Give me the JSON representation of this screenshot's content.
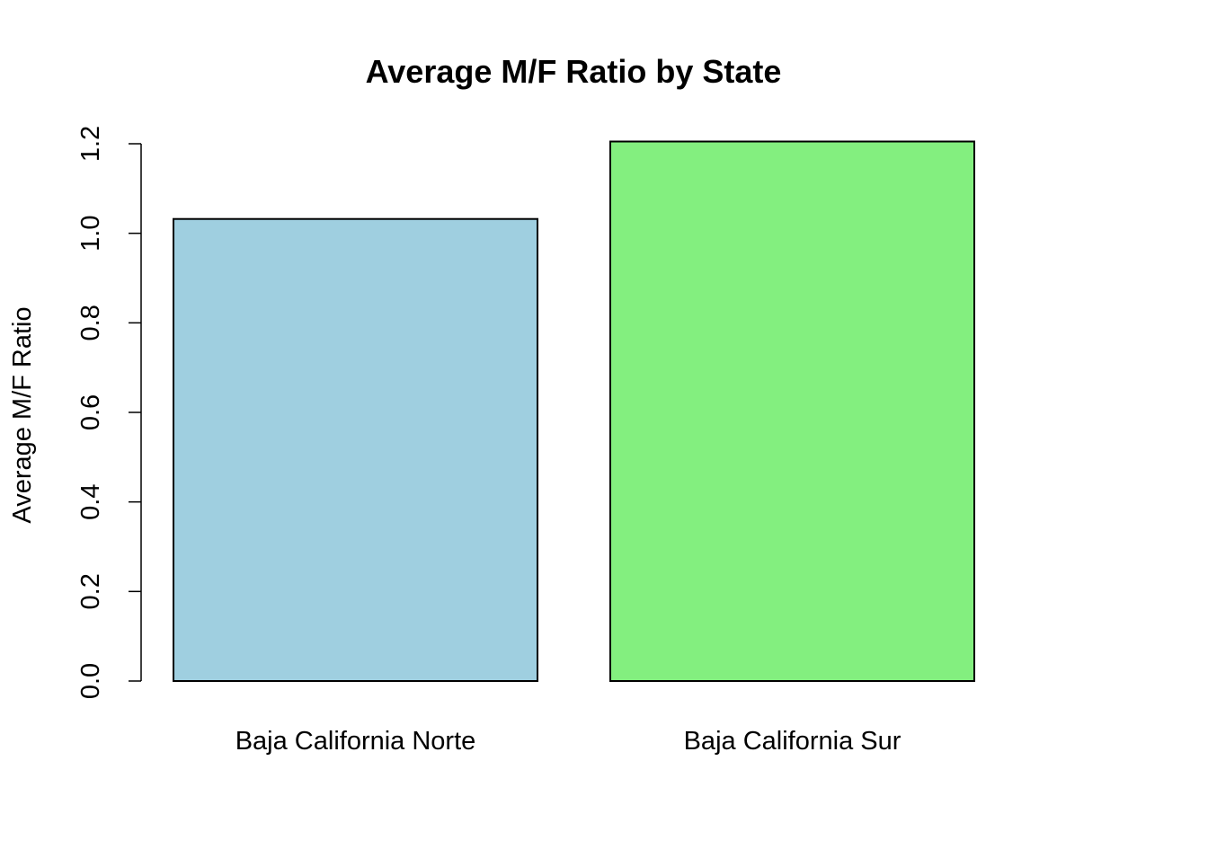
{
  "chart_data": {
    "type": "bar",
    "title": "Average M/F Ratio by State",
    "xlabel": "",
    "ylabel": "Average M/F Ratio",
    "categories": [
      "Baja California Norte",
      "Baja California Sur"
    ],
    "values": [
      1.032,
      1.205
    ],
    "colors": [
      "#9fcfe0",
      "#83ef7f"
    ],
    "ylim": [
      0,
      1.2
    ],
    "yticks": [
      0.0,
      0.2,
      0.4,
      0.6,
      0.8,
      1.0,
      1.2
    ],
    "ytick_labels": [
      "0.0",
      "0.2",
      "0.4",
      "0.6",
      "0.8",
      "1.0",
      "1.2"
    ],
    "grid": false,
    "legend": "none"
  }
}
